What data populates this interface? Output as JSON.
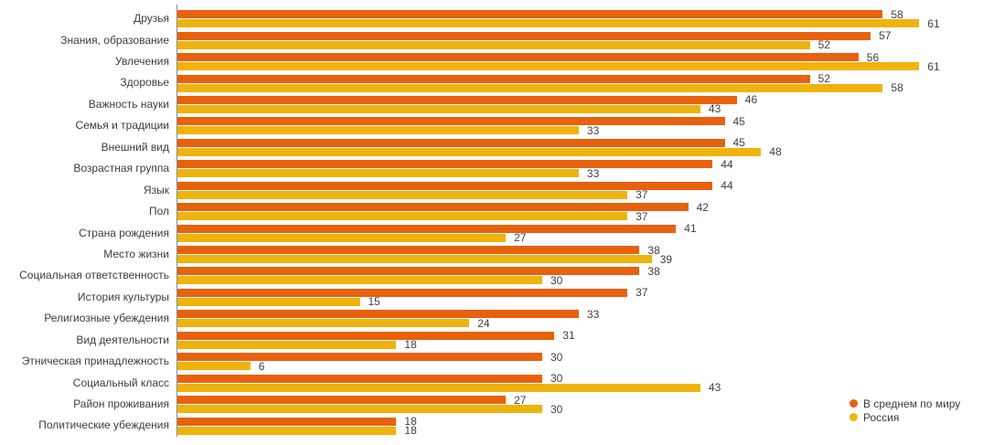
{
  "chart_data": {
    "type": "bar",
    "orientation": "horizontal",
    "title": "",
    "xlabel": "",
    "ylabel": "",
    "xlim": [
      0,
      61
    ],
    "grid": false,
    "value_labels": true,
    "legend_position": "bottom-right",
    "axis_line_color": "#8a8a8a",
    "categories": [
      "Друзья",
      "Знания, образование",
      "Увлечения",
      "Здоровье",
      "Важность науки",
      "Семья и традиции",
      "Внешний вид",
      "Возрастная группа",
      "Язык",
      "Пол",
      "Страна рождения",
      "Место жизни",
      "Социальная ответственность",
      "История культуры",
      "Религиозные убеждения",
      "Вид деятельности",
      "Этническая принадлежность",
      "Социальный класс",
      "Район проживания",
      "Политические убеждения"
    ],
    "series": [
      {
        "name": "В среднем по миру",
        "color": "#e8610d",
        "values": [
          58,
          57,
          56,
          52,
          46,
          45,
          45,
          44,
          44,
          42,
          41,
          38,
          38,
          37,
          33,
          31,
          30,
          30,
          27,
          18
        ]
      },
      {
        "name": "Россия",
        "color": "#efb30e",
        "values": [
          61,
          52,
          61,
          58,
          43,
          33,
          48,
          33,
          37,
          37,
          27,
          39,
          30,
          15,
          24,
          18,
          6,
          43,
          30,
          18
        ]
      }
    ]
  }
}
